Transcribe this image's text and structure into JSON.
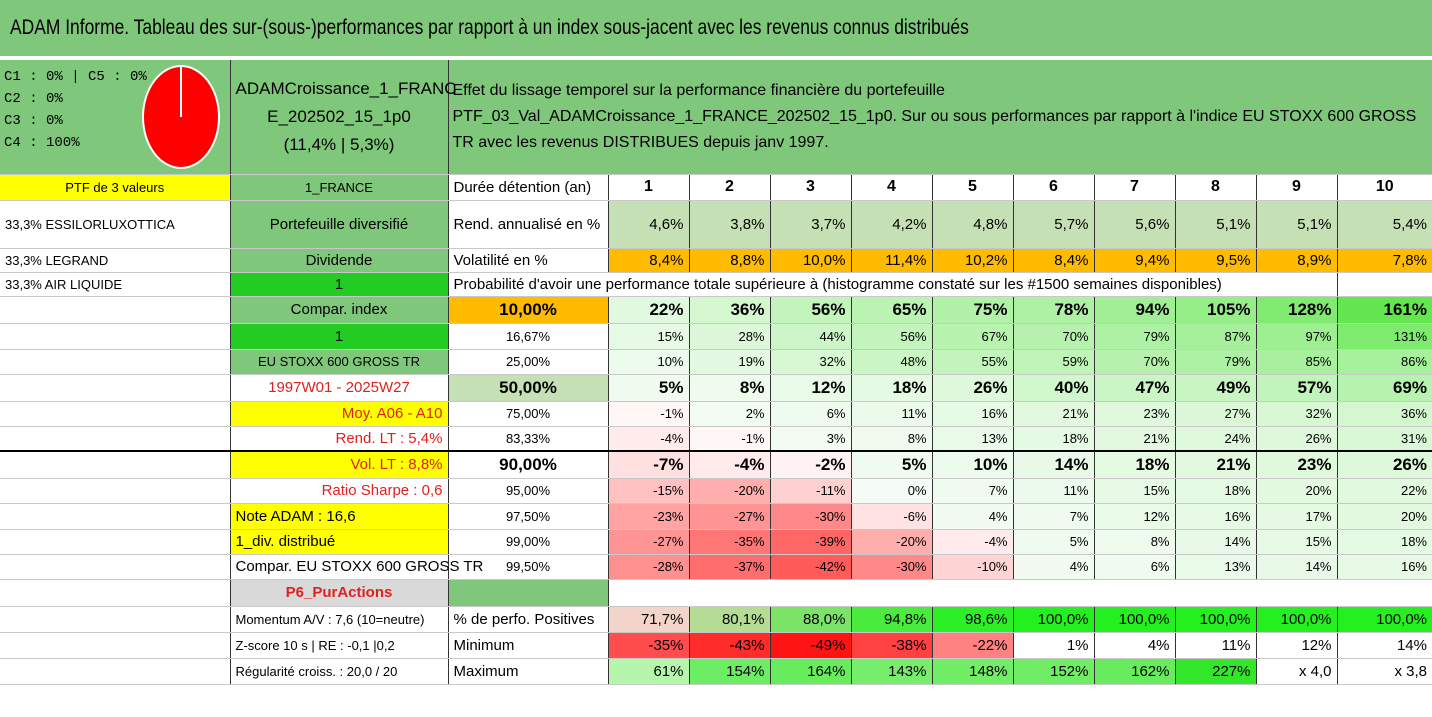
{
  "title": "ADAM Informe. Tableau des sur-(sous-)performances par rapport à un index sous-jacent avec les revenus connus distribués",
  "colors": {
    "green": "#7fc77b",
    "light_green": "#c5e0b4",
    "lime": "#22cc22",
    "yellow": "#ffff00",
    "orange": "#ffbb00",
    "gray": "#d9d9d9",
    "red_text": "#e02020"
  },
  "pie": {
    "labels": [
      "C1 : 0% | C5 : 0%",
      "C2 : 0%",
      "C3 : 0%",
      "C4 : 100%"
    ],
    "slices": [
      {
        "name": "C1",
        "value": 0,
        "color": "#ff0000"
      },
      {
        "name": "C2",
        "value": 0,
        "color": "#ff0000"
      },
      {
        "name": "C3",
        "value": 0,
        "color": "#ff0000"
      },
      {
        "name": "C4",
        "value": 100,
        "color": "#ff0000"
      },
      {
        "name": "C5",
        "value": 0,
        "color": "#ff0000"
      }
    ]
  },
  "portfolio_name": {
    "line1": "ADAMCroissance_1_FRANC",
    "line2": "E_202502_15_1p0",
    "line3": "(11,4% | 5,3%)"
  },
  "description": {
    "line1": "Effet du lissage temporel sur la performance financière du portefeuille",
    "line2": "PTF_03_Val_ADAMCroissance_1_FRANCE_202502_15_1p0. Sur ou sous performances par rapport à l'indice EU STOXX 600 GROSS TR avec les revenus DISTRIBUES depuis janv 1997."
  },
  "left_col": [
    "PTF de 3 valeurs",
    "33,3% ESSILORLUXOTTICA",
    "33,3% LEGRAND",
    "33,3% AIR LIQUIDE"
  ],
  "mid_col": {
    "france": "1_FRANCE",
    "diversifie": "Portefeuille diversifié",
    "dividende": "Dividende",
    "one_a": "1",
    "compar_index": "Compar. index",
    "one_b": "1",
    "index_name": "EU STOXX 600 GROSS TR",
    "period": "1997W01 - 2025W27",
    "moy": "Moy. A06 - A10",
    "rend_lt": "Rend. LT : 5,4%",
    "vol_lt": "Vol. LT : 8,8%",
    "sharpe": "Ratio Sharpe : 0,6",
    "note": "Note ADAM : 16,6",
    "div": "1_div. distribué",
    "compar": "Compar. EU STOXX 600 GROSS TR",
    "p6": "P6_PurActions",
    "momentum": "Momentum A/V : 7,6 (10=neutre)",
    "zscore": "Z-score 10 s | RE : -0,1 |0,2",
    "regularite": "Régularité croiss. : 20,0 / 20"
  },
  "header": {
    "label": "Durée détention (an)",
    "years": [
      "1",
      "2",
      "3",
      "4",
      "5",
      "6",
      "7",
      "8",
      "9",
      "10"
    ]
  },
  "rend": {
    "label": "Rend. annualisé en %",
    "values": [
      "4,6%",
      "3,8%",
      "3,7%",
      "4,2%",
      "4,8%",
      "5,7%",
      "5,6%",
      "5,1%",
      "5,1%",
      "5,4%"
    ]
  },
  "vol": {
    "label": "Volatilité en %",
    "values": [
      "8,4%",
      "8,8%",
      "10,0%",
      "11,4%",
      "10,2%",
      "8,4%",
      "9,4%",
      "9,5%",
      "8,9%",
      "7,8%"
    ]
  },
  "proba_title": "Probabilité d'avoir une performance totale supérieure à (histogramme constaté sur les #1500 semaines disponibles)",
  "proba_rows": [
    {
      "p": "10,00%",
      "values": [
        "22%",
        "36%",
        "56%",
        "65%",
        "75%",
        "78%",
        "94%",
        "105%",
        "128%",
        "161%"
      ]
    },
    {
      "p": "16,67%",
      "values": [
        "15%",
        "28%",
        "44%",
        "56%",
        "67%",
        "70%",
        "79%",
        "87%",
        "97%",
        "131%"
      ]
    },
    {
      "p": "25,00%",
      "values": [
        "10%",
        "19%",
        "32%",
        "48%",
        "55%",
        "59%",
        "70%",
        "79%",
        "85%",
        "86%"
      ]
    },
    {
      "p": "50,00%",
      "values": [
        "5%",
        "8%",
        "12%",
        "18%",
        "26%",
        "40%",
        "47%",
        "49%",
        "57%",
        "69%"
      ]
    },
    {
      "p": "75,00%",
      "values": [
        "-1%",
        "2%",
        "6%",
        "11%",
        "16%",
        "21%",
        "23%",
        "27%",
        "32%",
        "36%"
      ]
    },
    {
      "p": "83,33%",
      "values": [
        "-4%",
        "-1%",
        "3%",
        "8%",
        "13%",
        "18%",
        "21%",
        "24%",
        "26%",
        "31%"
      ]
    },
    {
      "p": "90,00%",
      "values": [
        "-7%",
        "-4%",
        "-2%",
        "5%",
        "10%",
        "14%",
        "18%",
        "21%",
        "23%",
        "26%"
      ]
    },
    {
      "p": "95,00%",
      "values": [
        "-15%",
        "-20%",
        "-11%",
        "0%",
        "7%",
        "11%",
        "15%",
        "18%",
        "20%",
        "22%"
      ]
    },
    {
      "p": "97,50%",
      "values": [
        "-23%",
        "-27%",
        "-30%",
        "-6%",
        "4%",
        "7%",
        "12%",
        "16%",
        "17%",
        "20%"
      ]
    },
    {
      "p": "99,00%",
      "values": [
        "-27%",
        "-35%",
        "-39%",
        "-20%",
        "-4%",
        "5%",
        "8%",
        "14%",
        "15%",
        "18%"
      ]
    },
    {
      "p": "99,50%",
      "values": [
        "-28%",
        "-37%",
        "-42%",
        "-30%",
        "-10%",
        "4%",
        "6%",
        "13%",
        "14%",
        "16%"
      ]
    }
  ],
  "pos": {
    "label": "% de perfo. Positives",
    "values": [
      "71,7%",
      "80,1%",
      "88,0%",
      "94,8%",
      "98,6%",
      "100,0%",
      "100,0%",
      "100,0%",
      "100,0%",
      "100,0%"
    ]
  },
  "min": {
    "label": "Minimum",
    "values": [
      "-35%",
      "-43%",
      "-49%",
      "-38%",
      "-22%",
      "1%",
      "4%",
      "11%",
      "12%",
      "14%"
    ]
  },
  "max": {
    "label": "Maximum",
    "values": [
      "61%",
      "154%",
      "164%",
      "143%",
      "148%",
      "152%",
      "162%",
      "227%",
      "x 4,0",
      "x 3,8"
    ]
  }
}
